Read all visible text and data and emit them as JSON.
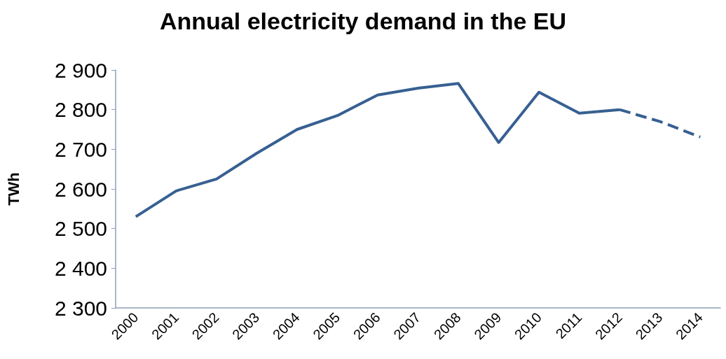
{
  "chart_data": {
    "type": "line",
    "title": "Annual electricity demand in the EU",
    "ylabel": "TWh",
    "categories": [
      "2000",
      "2001",
      "2002",
      "2003",
      "2004",
      "2005",
      "2006",
      "2007",
      "2008",
      "2009",
      "2010",
      "2011",
      "2012",
      "2013",
      "2014"
    ],
    "series": [
      {
        "color": "#376092",
        "line_style": "solid",
        "values": [
          2530,
          2595,
          2625,
          2690,
          2750,
          2785,
          2837,
          2854,
          2866,
          2717,
          2844,
          2791,
          2800,
          null,
          null
        ]
      },
      {
        "color": "#376092",
        "line_style": "dashed",
        "values": [
          null,
          null,
          null,
          null,
          null,
          null,
          null,
          null,
          null,
          null,
          null,
          null,
          2800,
          2770,
          2731
        ]
      }
    ],
    "ylim": [
      2300,
      2900
    ],
    "yticks": [
      {
        "value": 2300,
        "label": "2 300"
      },
      {
        "value": 2400,
        "label": "2 400"
      },
      {
        "value": 2500,
        "label": "2 500"
      },
      {
        "value": 2600,
        "label": "2 600"
      },
      {
        "value": 2700,
        "label": "2 700"
      },
      {
        "value": 2800,
        "label": "2 800"
      },
      {
        "value": 2900,
        "label": "2 900"
      }
    ],
    "grid": false,
    "marker": "none"
  }
}
